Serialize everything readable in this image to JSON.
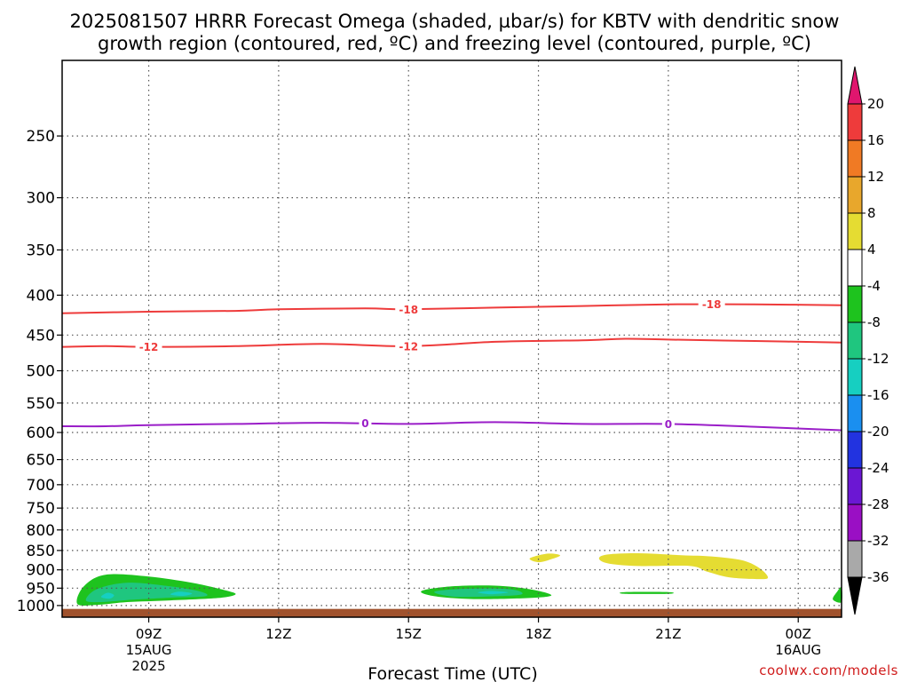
{
  "title": {
    "line1": "2025081507 HRRR Forecast Omega (shaded, µbar/s) for KBTV with dendritic snow",
    "line2": "growth region (contoured, red, ºC) and freezing level (contoured, purple, ºC)"
  },
  "credit": "coolwx.com/models",
  "chart_data": {
    "type": "heatmap",
    "xlabel": "Forecast Time (UTC)",
    "ylabel": "",
    "x_range_hours": [
      0,
      18
    ],
    "y_range_hPa": [
      1035,
      200
    ],
    "x_ticks": [
      {
        "hour": 2,
        "label": "09Z",
        "sub1": "15AUG",
        "sub2": "2025"
      },
      {
        "hour": 5,
        "label": "12Z",
        "sub1": "",
        "sub2": ""
      },
      {
        "hour": 8,
        "label": "15Z",
        "sub1": "",
        "sub2": ""
      },
      {
        "hour": 11,
        "label": "18Z",
        "sub1": "",
        "sub2": ""
      },
      {
        "hour": 14,
        "label": "21Z",
        "sub1": "",
        "sub2": ""
      },
      {
        "hour": 17,
        "label": "00Z",
        "sub1": "16AUG",
        "sub2": ""
      }
    ],
    "y_ticks": [
      {
        "p": 250,
        "label": "250"
      },
      {
        "p": 300,
        "label": "300"
      },
      {
        "p": 350,
        "label": "350"
      },
      {
        "p": 400,
        "label": "400"
      },
      {
        "p": 450,
        "label": "450"
      },
      {
        "p": 500,
        "label": "500"
      },
      {
        "p": 550,
        "label": "550"
      },
      {
        "p": 600,
        "label": "600"
      },
      {
        "p": 650,
        "label": "650"
      },
      {
        "p": 700,
        "label": "700"
      },
      {
        "p": 750,
        "label": "750"
      },
      {
        "p": 800,
        "label": "800"
      },
      {
        "p": 850,
        "label": "850"
      },
      {
        "p": 900,
        "label": "900"
      },
      {
        "p": 950,
        "label": "950"
      },
      {
        "p": 1000,
        "label": "1000"
      }
    ],
    "grid": true,
    "ground": {
      "top_p": 1010,
      "color": "#a0522d"
    },
    "contours": [
      {
        "name": "-18 ºC",
        "value": "-18",
        "color": "#ee3b3b",
        "points": [
          [
            0,
            422
          ],
          [
            2,
            420
          ],
          [
            4,
            419
          ],
          [
            5,
            417
          ],
          [
            7,
            416
          ],
          [
            8,
            417
          ],
          [
            10,
            415
          ],
          [
            12,
            413
          ],
          [
            14,
            411
          ],
          [
            15,
            411
          ],
          [
            16,
            411
          ],
          [
            18,
            412
          ]
        ],
        "labels_at_hours": [
          8,
          15
        ]
      },
      {
        "name": "-12 ºC",
        "value": "-12",
        "color": "#ee3b3b",
        "points": [
          [
            0,
            466
          ],
          [
            1,
            465
          ],
          [
            2,
            466
          ],
          [
            4,
            465
          ],
          [
            6,
            462
          ],
          [
            8,
            465
          ],
          [
            10,
            459
          ],
          [
            12,
            457
          ],
          [
            13,
            455
          ],
          [
            14,
            456
          ],
          [
            16,
            458
          ],
          [
            18,
            460
          ]
        ],
        "labels_at_hours": [
          2,
          8
        ]
      },
      {
        "name": "Freezing level 0 ºC",
        "value": "0",
        "color": "#9a1ec8",
        "points": [
          [
            0,
            589
          ],
          [
            1,
            589
          ],
          [
            2,
            587
          ],
          [
            4,
            585
          ],
          [
            6,
            583
          ],
          [
            8,
            585
          ],
          [
            10,
            582
          ],
          [
            12,
            585
          ],
          [
            14,
            585
          ],
          [
            16,
            590
          ],
          [
            18,
            596
          ]
        ],
        "labels_at_hours": [
          7,
          14
        ]
      }
    ],
    "shaded_regions": [
      {
        "value_range": [
          -8,
          -4
        ],
        "color": "#1ec31e",
        "points": [
          [
            0.35,
            995
          ],
          [
            0.5,
            945
          ],
          [
            1,
            913
          ],
          [
            2,
            918
          ],
          [
            3,
            935
          ],
          [
            3.8,
            957
          ],
          [
            4,
            968
          ],
          [
            3.6,
            978
          ],
          [
            2.5,
            985
          ],
          [
            1.5,
            990
          ],
          [
            0.8,
            998
          ]
        ]
      },
      {
        "value_range": [
          -12,
          -8
        ],
        "color": "#1fc67f",
        "points": [
          [
            0.55,
            985
          ],
          [
            0.8,
            953
          ],
          [
            1.5,
            935
          ],
          [
            2.5,
            945
          ],
          [
            3.2,
            960
          ],
          [
            3.3,
            973
          ],
          [
            2.5,
            977
          ],
          [
            1.5,
            984
          ],
          [
            0.9,
            990
          ]
        ]
      },
      {
        "value_range": [
          -16,
          -12
        ],
        "color": "#16cfc1",
        "points": [
          [
            0.9,
            975
          ],
          [
            1.05,
            963
          ],
          [
            1.2,
            970
          ],
          [
            1.1,
            980
          ]
        ]
      },
      {
        "value_range": [
          -16,
          -12
        ],
        "color": "#16cfc1",
        "points": [
          [
            2.5,
            968
          ],
          [
            2.7,
            960
          ],
          [
            3.0,
            965
          ],
          [
            2.8,
            972
          ]
        ]
      },
      {
        "value_range": [
          -8,
          -4
        ],
        "color": "#1ec31e",
        "points": [
          [
            8.3,
            958
          ],
          [
            9,
            945
          ],
          [
            10,
            943
          ],
          [
            10.8,
            953
          ],
          [
            11.3,
            970
          ],
          [
            10.8,
            978
          ],
          [
            9.5,
            981
          ],
          [
            8.6,
            973
          ]
        ]
      },
      {
        "value_range": [
          -12,
          -8
        ],
        "color": "#1fc67f",
        "points": [
          [
            8.6,
            960
          ],
          [
            9.1,
            953
          ],
          [
            10,
            951
          ],
          [
            10.5,
            956
          ],
          [
            10.6,
            968
          ],
          [
            10,
            973
          ],
          [
            9.2,
            975
          ],
          [
            8.8,
            970
          ]
        ]
      },
      {
        "value_range": [
          -16,
          -12
        ],
        "color": "#16cfc1",
        "points": [
          [
            9.6,
            962
          ],
          [
            9.9,
            958
          ],
          [
            10.3,
            962
          ],
          [
            9.9,
            967
          ]
        ]
      },
      {
        "value_range": [
          -8,
          -4
        ],
        "color": "#1ec31e",
        "points": [
          [
            13,
            961
          ],
          [
            14,
            961
          ],
          [
            14,
            966
          ],
          [
            13,
            966
          ]
        ]
      },
      {
        "value_range": [
          -8,
          -4
        ],
        "color": "#1ec31e",
        "points": [
          [
            17.8,
            982
          ],
          [
            17.9,
            960
          ],
          [
            18,
            948
          ],
          [
            18,
            990
          ]
        ]
      },
      {
        "value_range": [
          4,
          8
        ],
        "color": "#e5dc32",
        "points": [
          [
            10.8,
            870
          ],
          [
            11.2,
            858
          ],
          [
            11.5,
            862
          ],
          [
            11.3,
            872
          ],
          [
            11,
            880
          ]
        ]
      },
      {
        "value_range": [
          4,
          8
        ],
        "color": "#e5dc32",
        "points": [
          [
            12.4,
            870
          ],
          [
            12.6,
            860
          ],
          [
            13.3,
            857
          ],
          [
            14.3,
            862
          ],
          [
            15,
            865
          ],
          [
            15.7,
            875
          ],
          [
            16.1,
            895
          ],
          [
            16.3,
            920
          ],
          [
            16.1,
            925
          ],
          [
            15.4,
            920
          ],
          [
            14.9,
            905
          ],
          [
            14.5,
            890
          ],
          [
            13.3,
            890
          ],
          [
            12.6,
            883
          ]
        ]
      }
    ],
    "colorbar": {
      "segments": [
        {
          "value": "20",
          "color": "#ec1c6e"
        },
        {
          "value": "16",
          "color": "#ee3b3b"
        },
        {
          "value": "12",
          "color": "#f07a24"
        },
        {
          "value": "8",
          "color": "#e8a72c"
        },
        {
          "value": "4",
          "color": "#e5dc32"
        },
        {
          "value": "-4",
          "color": "#ffffff"
        },
        {
          "value": "-8",
          "color": "#1ec31e"
        },
        {
          "value": "-12",
          "color": "#1fc67f"
        },
        {
          "value": "-16",
          "color": "#16cfc1"
        },
        {
          "value": "-20",
          "color": "#1a8ff0"
        },
        {
          "value": "-24",
          "color": "#2233e0"
        },
        {
          "value": "-28",
          "color": "#6b17d3"
        },
        {
          "value": "-32",
          "color": "#9a0fc4"
        },
        {
          "value": "-36",
          "color": "#a9a9a9"
        }
      ],
      "top_arrow_color": "#e0166e",
      "bottom_arrow_color": "#000000"
    }
  }
}
